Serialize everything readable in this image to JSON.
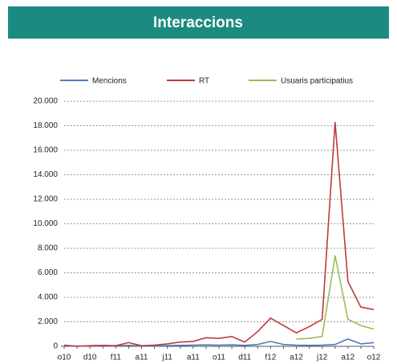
{
  "chart_data": {
    "type": "line",
    "title": "Interaccions",
    "categories": [
      "o10",
      null,
      "d10",
      null,
      "f11",
      null,
      "a11",
      null,
      "j11",
      null,
      "a11",
      null,
      "o11",
      null,
      "d11",
      null,
      "f12",
      null,
      "a12",
      null,
      "j12",
      null,
      "a12",
      null,
      "o12"
    ],
    "series": [
      {
        "name": "Mencions",
        "color": "#4a7fc1",
        "values": [
          50,
          20,
          40,
          30,
          40,
          80,
          30,
          40,
          60,
          80,
          100,
          120,
          100,
          120,
          80,
          150,
          400,
          150,
          100,
          80,
          100,
          150,
          600,
          200,
          300
        ]
      },
      {
        "name": "RT",
        "color": "#c0393b",
        "values": [
          100,
          0,
          50,
          80,
          50,
          300,
          50,
          100,
          200,
          350,
          400,
          700,
          650,
          800,
          350,
          1200,
          2300,
          1700,
          1100,
          1600,
          2200,
          18300,
          5300,
          3200,
          3000
        ]
      },
      {
        "name": "Usuaris participatius",
        "color": "#9bbb59",
        "values": [
          null,
          null,
          null,
          null,
          null,
          null,
          null,
          null,
          null,
          null,
          null,
          null,
          null,
          null,
          null,
          null,
          null,
          null,
          600,
          650,
          800,
          7400,
          2200,
          1700,
          1400
        ]
      }
    ],
    "ylim": [
      0,
      20000
    ],
    "yticks": [
      0,
      {
        "value": 2000,
        "label": "2.000"
      },
      {
        "value": 4000,
        "label": "4.000"
      },
      {
        "value": 6000,
        "label": "6.000"
      },
      {
        "value": 8000,
        "label": "8.000"
      },
      {
        "value": 10000,
        "label": "10.000"
      },
      {
        "value": 12000,
        "label": "12.000"
      },
      {
        "value": 14000,
        "label": "14.000"
      },
      {
        "value": 16000,
        "label": "16.000"
      },
      {
        "value": 18000,
        "label": "18.000"
      },
      {
        "value": 20000,
        "label": "20.000"
      }
    ],
    "grid": true,
    "legend": "top"
  }
}
